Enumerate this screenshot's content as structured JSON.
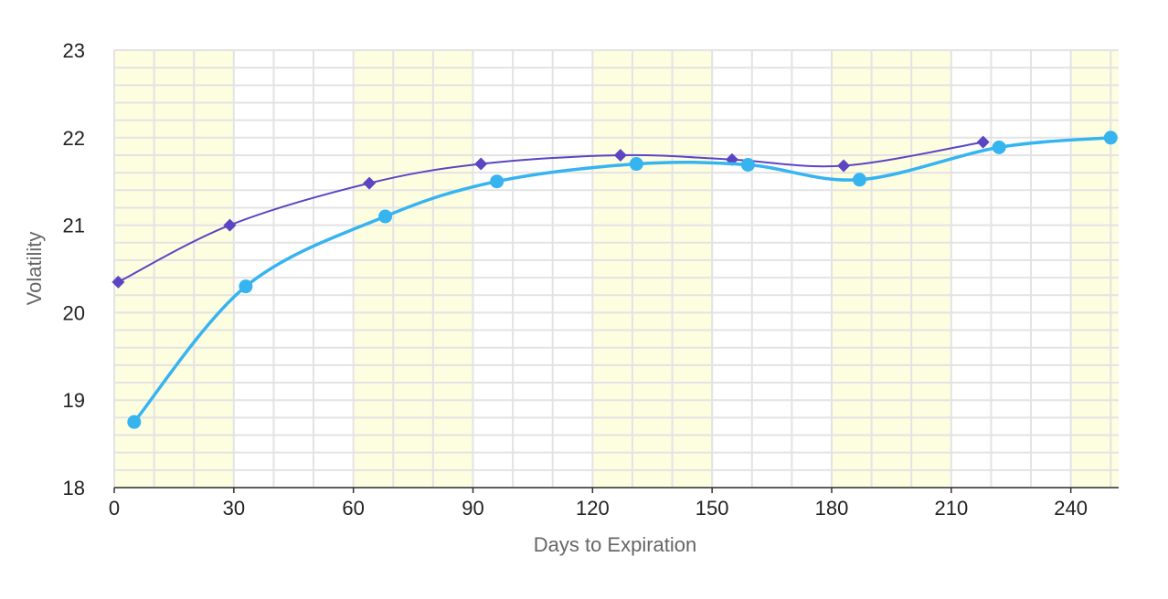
{
  "chart_data": {
    "type": "line",
    "xlabel": "Days to Expiration",
    "ylabel": "Volatility",
    "xlim": [
      0,
      252
    ],
    "ylim": [
      18,
      23
    ],
    "xticks": [
      0,
      30,
      60,
      90,
      120,
      150,
      180,
      210,
      240
    ],
    "yticks": [
      18,
      19,
      20,
      21,
      22,
      23
    ],
    "grid": true,
    "band_color": "#fdfde0",
    "bands": [
      [
        0,
        30
      ],
      [
        60,
        90
      ],
      [
        120,
        150
      ],
      [
        180,
        210
      ],
      [
        240,
        252
      ]
    ],
    "series": [
      {
        "marker": "diamond",
        "color": "#5b45c2",
        "x": [
          1,
          29,
          64,
          92,
          127,
          155,
          183,
          218
        ],
        "y": [
          20.35,
          21.0,
          21.48,
          21.7,
          21.8,
          21.75,
          21.68,
          21.95
        ]
      },
      {
        "marker": "circle",
        "color": "#36b4f0",
        "x": [
          5,
          33,
          68,
          96,
          131,
          159,
          187,
          222,
          250
        ],
        "y": [
          18.75,
          20.3,
          21.1,
          21.5,
          21.7,
          21.69,
          21.52,
          21.89,
          22.0
        ]
      }
    ]
  }
}
